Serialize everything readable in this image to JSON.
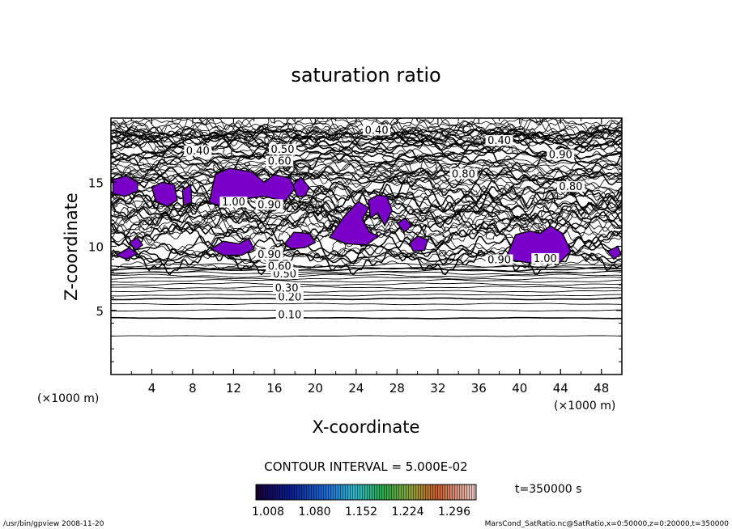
{
  "chart_data": {
    "type": "contour",
    "title": "saturation ratio",
    "xlabel": "X-coordinate",
    "ylabel": "Z-coordinate",
    "x_unit_left": "(×1000 m)",
    "x_unit_right": "(×1000 m)",
    "xlim": [
      0,
      50
    ],
    "ylim": [
      0,
      20
    ],
    "x_ticks": [
      4,
      8,
      12,
      16,
      20,
      24,
      28,
      32,
      36,
      40,
      44,
      48
    ],
    "y_ticks": [
      5,
      10,
      15
    ],
    "contour_interval_text": "CONTOUR INTERVAL = 5.000E-02",
    "time_text": "t=350000 s",
    "colorbar_ticks": [
      "1.008",
      "1.080",
      "1.152",
      "1.224",
      "1.296"
    ],
    "fill_color": "#7a00c8",
    "contour_labels": [
      {
        "text": "0.10",
        "x": 17.5,
        "z": 4.5
      },
      {
        "text": "0.20",
        "x": 17.5,
        "z": 5.9
      },
      {
        "text": "0.30",
        "x": 17.2,
        "z": 6.6
      },
      {
        "text": "0.50",
        "x": 17.0,
        "z": 7.7
      },
      {
        "text": "0.60",
        "x": 16.5,
        "z": 8.3
      },
      {
        "text": "0.90",
        "x": 15.5,
        "z": 9.2
      },
      {
        "text": "1.00",
        "x": 12.0,
        "z": 13.3
      },
      {
        "text": "0.90",
        "x": 15.5,
        "z": 13.1
      },
      {
        "text": "0.40",
        "x": 8.5,
        "z": 17.3
      },
      {
        "text": "0.40",
        "x": 26.0,
        "z": 18.9
      },
      {
        "text": "0.40",
        "x": 38.0,
        "z": 18.1
      },
      {
        "text": "0.50",
        "x": 16.8,
        "z": 17.4
      },
      {
        "text": "0.60",
        "x": 16.5,
        "z": 16.5
      },
      {
        "text": "0.80",
        "x": 34.5,
        "z": 15.5
      },
      {
        "text": "0.90",
        "x": 38.0,
        "z": 8.8
      },
      {
        "text": "1.00",
        "x": 42.5,
        "z": 8.9
      },
      {
        "text": "0.90",
        "x": 44.0,
        "z": 17.0
      },
      {
        "text": "0.80",
        "x": 45.0,
        "z": 14.5
      }
    ],
    "supersaturated_regions": [
      [
        [
          0.2,
          15.2
        ],
        [
          1.5,
          15.5
        ],
        [
          2.6,
          15.0
        ],
        [
          2.6,
          14.3
        ],
        [
          1.4,
          13.9
        ],
        [
          0.2,
          14.1
        ]
      ],
      [
        [
          4.0,
          14.6
        ],
        [
          5.0,
          15.0
        ],
        [
          6.2,
          14.8
        ],
        [
          6.5,
          13.6
        ],
        [
          5.5,
          13.1
        ],
        [
          4.4,
          13.5
        ]
      ],
      [
        [
          7.0,
          14.4
        ],
        [
          7.8,
          14.8
        ],
        [
          7.9,
          13.4
        ],
        [
          7.1,
          13.2
        ]
      ],
      [
        [
          9.6,
          13.4
        ],
        [
          10.2,
          15.6
        ],
        [
          11.6,
          16.1
        ],
        [
          13.8,
          15.8
        ],
        [
          15.0,
          15.0
        ],
        [
          16.0,
          15.6
        ],
        [
          17.5,
          15.3
        ],
        [
          18.0,
          14.5
        ],
        [
          17.0,
          13.5
        ],
        [
          15.0,
          13.9
        ],
        [
          12.2,
          13.6
        ],
        [
          10.6,
          13.2
        ]
      ],
      [
        [
          17.8,
          14.8
        ],
        [
          18.6,
          15.4
        ],
        [
          19.4,
          14.6
        ],
        [
          19.0,
          13.9
        ],
        [
          18.2,
          13.9
        ]
      ],
      [
        [
          1.8,
          10.3
        ],
        [
          2.6,
          10.7
        ],
        [
          3.1,
          10.1
        ],
        [
          2.4,
          9.7
        ]
      ],
      [
        [
          0.5,
          9.3
        ],
        [
          1.8,
          9.9
        ],
        [
          2.6,
          9.4
        ],
        [
          1.5,
          9.0
        ]
      ],
      [
        [
          9.8,
          9.8
        ],
        [
          11.0,
          10.4
        ],
        [
          12.5,
          10.2
        ],
        [
          13.5,
          10.6
        ],
        [
          14.0,
          9.8
        ],
        [
          12.8,
          9.3
        ],
        [
          11.0,
          9.3
        ]
      ],
      [
        [
          17.0,
          10.2
        ],
        [
          17.9,
          11.1
        ],
        [
          19.4,
          11.0
        ],
        [
          20.0,
          10.3
        ],
        [
          19.0,
          9.9
        ],
        [
          17.6,
          9.8
        ]
      ],
      [
        [
          21.4,
          10.7
        ],
        [
          22.8,
          12.3
        ],
        [
          24.2,
          13.5
        ],
        [
          25.2,
          13.0
        ],
        [
          24.6,
          12.1
        ],
        [
          25.3,
          11.1
        ],
        [
          26.2,
          10.8
        ],
        [
          25.0,
          10.1
        ],
        [
          23.0,
          10.2
        ]
      ],
      [
        [
          25.2,
          13.6
        ],
        [
          26.1,
          14.0
        ],
        [
          27.0,
          13.9
        ],
        [
          27.5,
          12.8
        ],
        [
          26.8,
          11.6
        ],
        [
          26.1,
          12.6
        ],
        [
          25.4,
          12.2
        ]
      ],
      [
        [
          28.0,
          11.8
        ],
        [
          28.8,
          12.2
        ],
        [
          29.4,
          11.6
        ],
        [
          28.7,
          11.1
        ]
      ],
      [
        [
          29.2,
          10.2
        ],
        [
          30.0,
          10.8
        ],
        [
          31.0,
          10.5
        ],
        [
          30.7,
          9.7
        ],
        [
          29.6,
          9.6
        ]
      ],
      [
        [
          38.6,
          9.0
        ],
        [
          39.6,
          10.9
        ],
        [
          41.0,
          11.2
        ],
        [
          42.0,
          11.0
        ],
        [
          43.0,
          11.6
        ],
        [
          44.2,
          11.0
        ],
        [
          45.0,
          9.6
        ],
        [
          44.0,
          8.8
        ],
        [
          41.0,
          8.7
        ]
      ],
      [
        [
          48.6,
          9.6
        ],
        [
          49.6,
          10.0
        ],
        [
          49.9,
          9.4
        ],
        [
          49.2,
          9.0
        ]
      ]
    ]
  },
  "footer": {
    "left": "/usr/bin/gpview   2008-11-20",
    "right": "MarsCond_SatRatio.nc@SatRatio,x=0:50000,z=0:20000,t=350000"
  }
}
